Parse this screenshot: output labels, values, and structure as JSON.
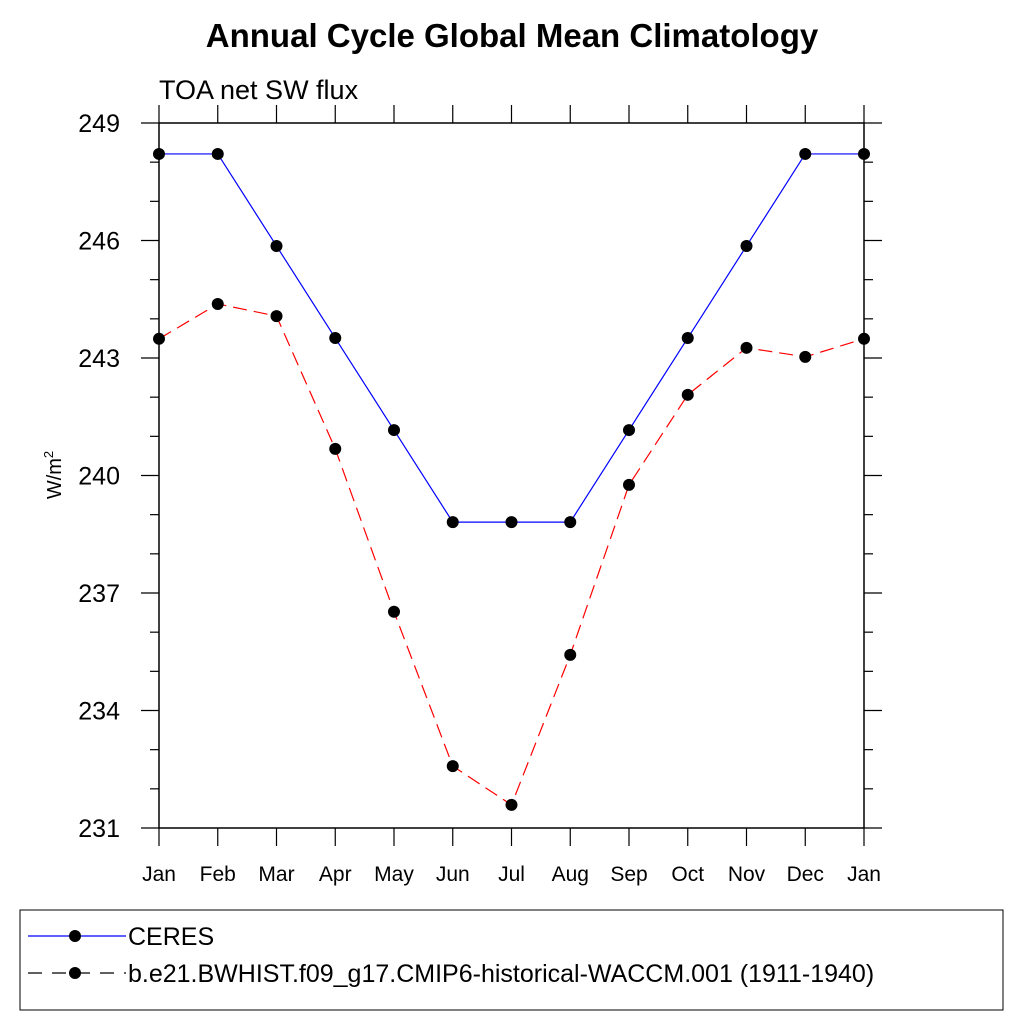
{
  "chart_data": {
    "type": "line",
    "title": "Annual Cycle Global Mean Climatology",
    "subtitle": "TOA net SW flux",
    "xlabel": "",
    "ylabel": "W/m",
    "ylabel_sup": "2",
    "categories": [
      "Jan",
      "Feb",
      "Mar",
      "Apr",
      "May",
      "Jun",
      "Jul",
      "Aug",
      "Sep",
      "Oct",
      "Nov",
      "Dec",
      "Jan"
    ],
    "ylim": [
      231,
      249
    ],
    "yticks": [
      231,
      234,
      237,
      240,
      243,
      246,
      249
    ],
    "grid": false,
    "legend_position": "bottom",
    "series": [
      {
        "name": "CERES",
        "color": "#0000ff",
        "dash": "solid",
        "values": [
          248.21,
          248.21,
          245.86,
          243.51,
          241.16,
          238.81,
          238.81,
          238.81,
          241.16,
          243.51,
          245.86,
          248.21,
          248.21
        ]
      },
      {
        "name": "b.e21.BWHIST.f09_g17.CMIP6-historical-WACCM.001 (1911-1940)",
        "color": "#ff0000",
        "dash": "dashed",
        "values": [
          243.49,
          244.38,
          244.07,
          240.68,
          236.52,
          232.58,
          231.59,
          235.42,
          239.76,
          242.06,
          243.26,
          243.03,
          243.49
        ]
      }
    ]
  }
}
